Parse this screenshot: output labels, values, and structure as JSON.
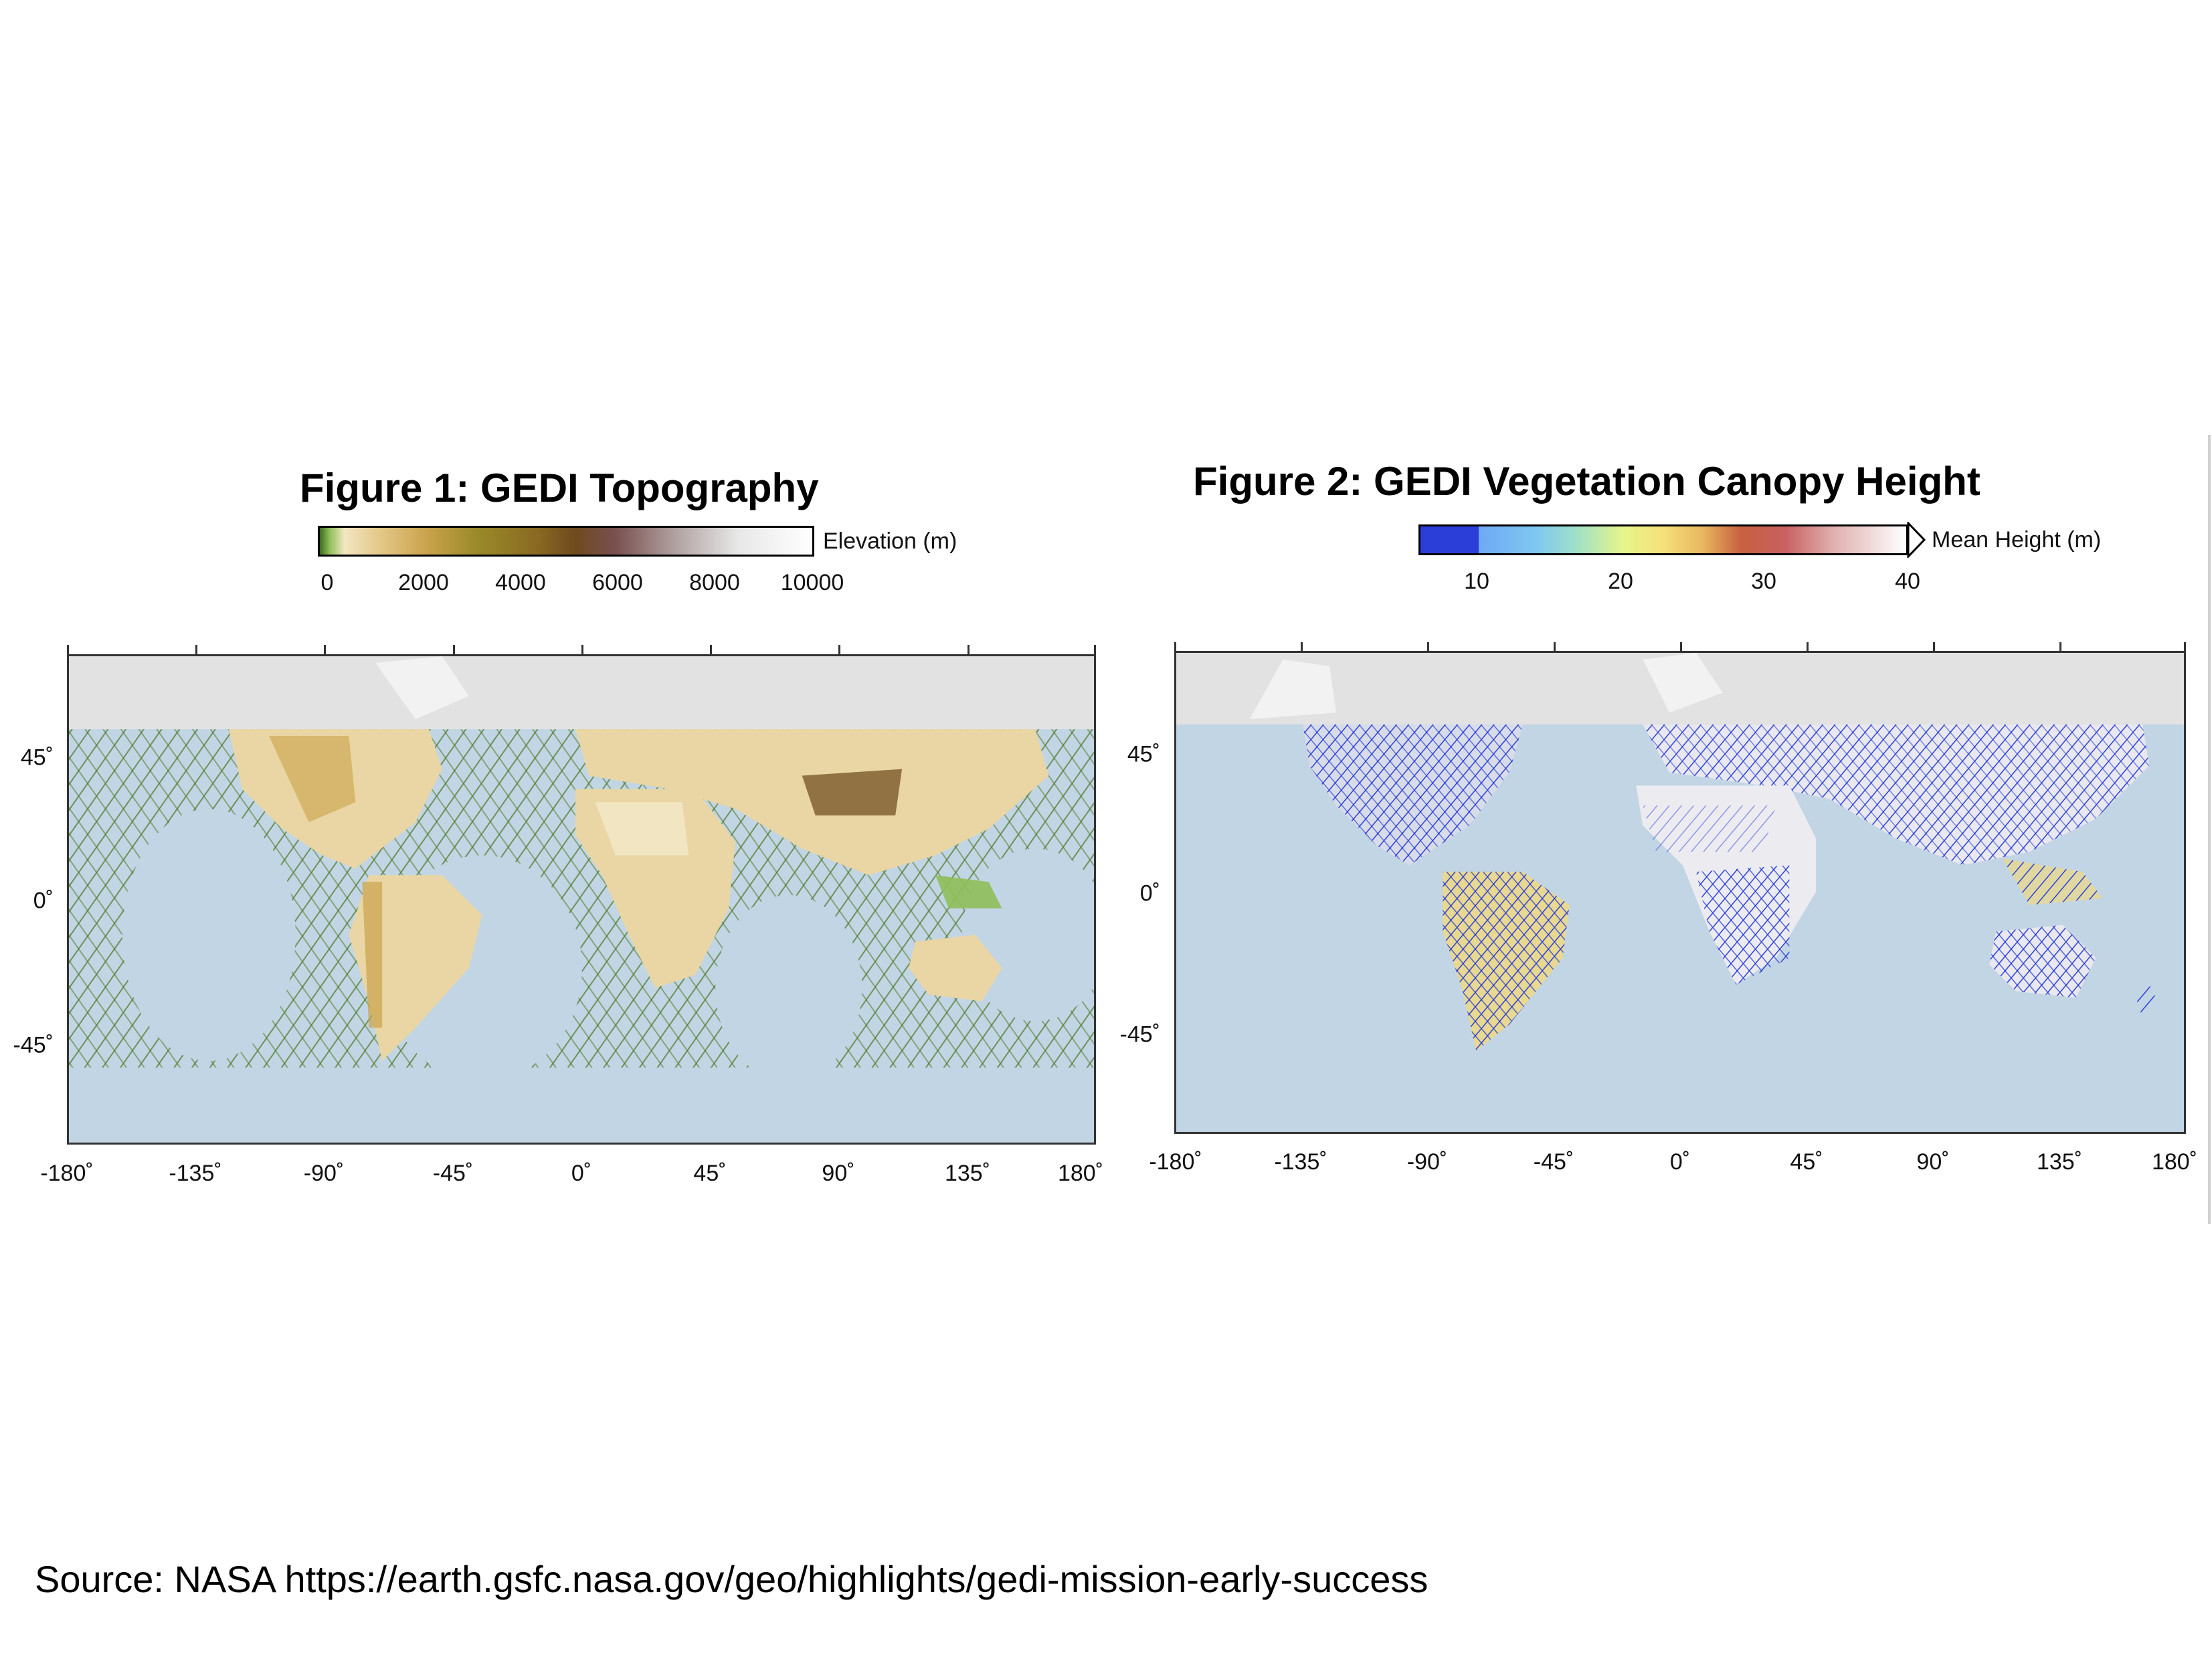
{
  "figure1": {
    "title": "Figure 1: GEDI Topography",
    "colorbar": {
      "label": "Elevation (m)",
      "ticks": [
        "0",
        "2000",
        "4000",
        "6000",
        "8000",
        "10000"
      ],
      "range": [
        0,
        10000
      ]
    },
    "x_ticks": [
      "-180˚",
      "-135˚",
      "-90˚",
      "-45˚",
      "0˚",
      "45˚",
      "90˚",
      "135˚",
      "180˚"
    ],
    "y_ticks": [
      "45˚",
      "0˚",
      "-45˚"
    ]
  },
  "figure2": {
    "title": "Figure 2: GEDI Vegetation Canopy Height",
    "colorbar": {
      "label": "Mean Height (m)",
      "ticks": [
        "10",
        "20",
        "30",
        "40"
      ],
      "range": [
        10,
        40
      ]
    },
    "x_ticks": [
      "-180˚",
      "-135˚",
      "-90˚",
      "-45˚",
      "0˚",
      "45˚",
      "90˚",
      "135˚",
      "180˚"
    ],
    "y_ticks": [
      "45˚",
      "0˚",
      "-45˚"
    ]
  },
  "colors": {
    "ocean": "#c2d5e4",
    "unsampled": "#e2e2e2",
    "topo_low": "#4f7a2a",
    "topo_mid": "#e9d6a4",
    "topo_high": "#7a5a2a",
    "canopy_low": "#2b3fd8",
    "canopy_high": "#ffffff"
  },
  "source": "Source: NASA https://earth.gsfc.nasa.gov/geo/highlights/gedi-mission-early-success"
}
